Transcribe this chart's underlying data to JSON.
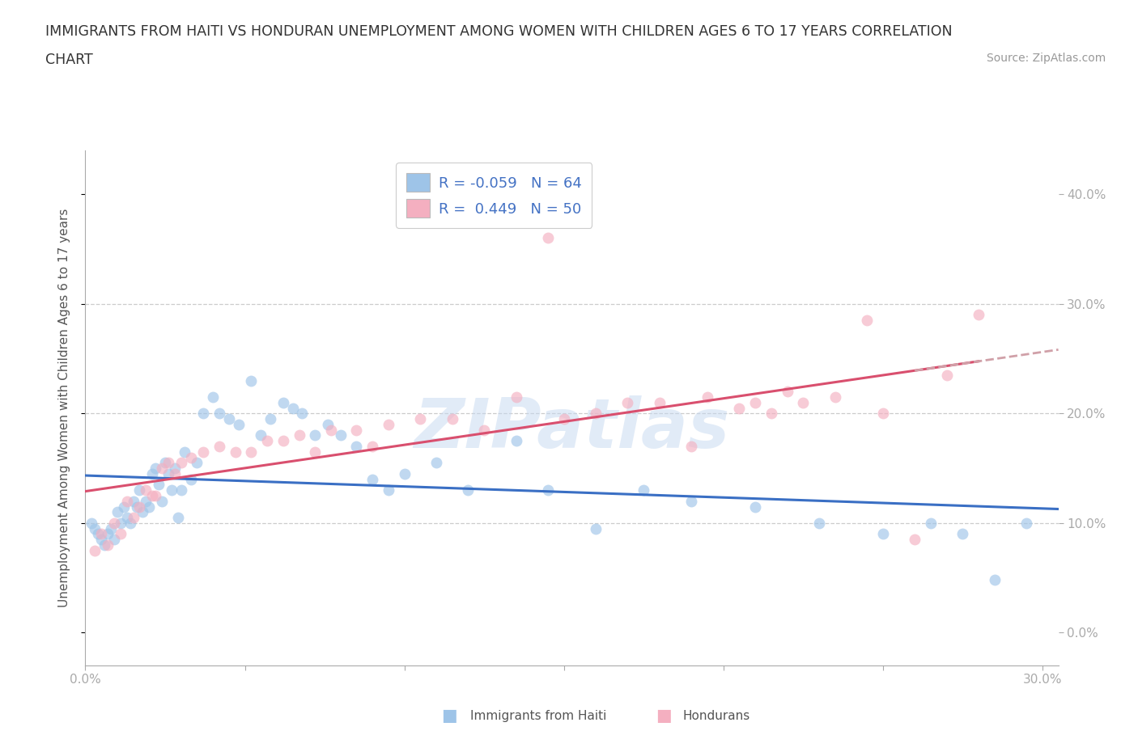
{
  "title_line1": "IMMIGRANTS FROM HAITI VS HONDURAN UNEMPLOYMENT AMONG WOMEN WITH CHILDREN AGES 6 TO 17 YEARS CORRELATION",
  "title_line2": "CHART",
  "source_text": "Source: ZipAtlas.com",
  "xlim": [
    0.0,
    0.305
  ],
  "ylim": [
    -0.03,
    0.44
  ],
  "ylabel": "Unemployment Among Women with Children Ages 6 to 17 years",
  "haiti_R": "-0.059",
  "haiti_N": "64",
  "honduran_R": "0.449",
  "honduran_N": "50",
  "haiti_color": "#9ec4e8",
  "honduran_color": "#f4afc0",
  "haiti_line_color": "#3a6fc4",
  "honduran_line_color": "#d94f6e",
  "dashed_line_color": "#d0a0a8",
  "grid_color": "#cccccc",
  "background_color": "#ffffff",
  "watermark_text": "ZIPatlas",
  "ytick_vals": [
    0.0,
    0.1,
    0.2,
    0.3,
    0.4
  ],
  "xtick_edge_left": "0.0%",
  "xtick_edge_right": "30.0%",
  "haiti_x": [
    0.002,
    0.003,
    0.004,
    0.005,
    0.006,
    0.007,
    0.008,
    0.009,
    0.01,
    0.011,
    0.012,
    0.013,
    0.014,
    0.015,
    0.016,
    0.017,
    0.018,
    0.019,
    0.02,
    0.021,
    0.022,
    0.023,
    0.024,
    0.025,
    0.026,
    0.027,
    0.028,
    0.029,
    0.03,
    0.031,
    0.033,
    0.035,
    0.037,
    0.04,
    0.042,
    0.045,
    0.048,
    0.052,
    0.055,
    0.058,
    0.062,
    0.065,
    0.068,
    0.072,
    0.076,
    0.08,
    0.085,
    0.09,
    0.095,
    0.1,
    0.11,
    0.12,
    0.135,
    0.145,
    0.16,
    0.175,
    0.19,
    0.21,
    0.23,
    0.25,
    0.265,
    0.275,
    0.285,
    0.295
  ],
  "haiti_y": [
    0.1,
    0.095,
    0.09,
    0.085,
    0.08,
    0.09,
    0.095,
    0.085,
    0.11,
    0.1,
    0.115,
    0.105,
    0.1,
    0.12,
    0.115,
    0.13,
    0.11,
    0.12,
    0.115,
    0.145,
    0.15,
    0.135,
    0.12,
    0.155,
    0.145,
    0.13,
    0.15,
    0.105,
    0.13,
    0.165,
    0.14,
    0.155,
    0.2,
    0.215,
    0.2,
    0.195,
    0.19,
    0.23,
    0.18,
    0.195,
    0.21,
    0.205,
    0.2,
    0.18,
    0.19,
    0.18,
    0.17,
    0.14,
    0.13,
    0.145,
    0.155,
    0.13,
    0.175,
    0.13,
    0.095,
    0.13,
    0.12,
    0.115,
    0.1,
    0.09,
    0.1,
    0.09,
    0.048,
    0.1
  ],
  "honduran_x": [
    0.003,
    0.005,
    0.007,
    0.009,
    0.011,
    0.013,
    0.015,
    0.017,
    0.019,
    0.021,
    0.022,
    0.024,
    0.026,
    0.028,
    0.03,
    0.033,
    0.037,
    0.042,
    0.047,
    0.052,
    0.057,
    0.062,
    0.067,
    0.072,
    0.077,
    0.085,
    0.09,
    0.095,
    0.105,
    0.115,
    0.125,
    0.135,
    0.145,
    0.15,
    0.16,
    0.17,
    0.18,
    0.19,
    0.195,
    0.205,
    0.21,
    0.215,
    0.22,
    0.225,
    0.235,
    0.245,
    0.25,
    0.26,
    0.27,
    0.28
  ],
  "honduran_y": [
    0.075,
    0.09,
    0.08,
    0.1,
    0.09,
    0.12,
    0.105,
    0.115,
    0.13,
    0.125,
    0.125,
    0.15,
    0.155,
    0.145,
    0.155,
    0.16,
    0.165,
    0.17,
    0.165,
    0.165,
    0.175,
    0.175,
    0.18,
    0.165,
    0.185,
    0.185,
    0.17,
    0.19,
    0.195,
    0.195,
    0.185,
    0.215,
    0.36,
    0.195,
    0.2,
    0.21,
    0.21,
    0.17,
    0.215,
    0.205,
    0.21,
    0.2,
    0.22,
    0.21,
    0.215,
    0.285,
    0.2,
    0.085,
    0.235,
    0.29
  ]
}
